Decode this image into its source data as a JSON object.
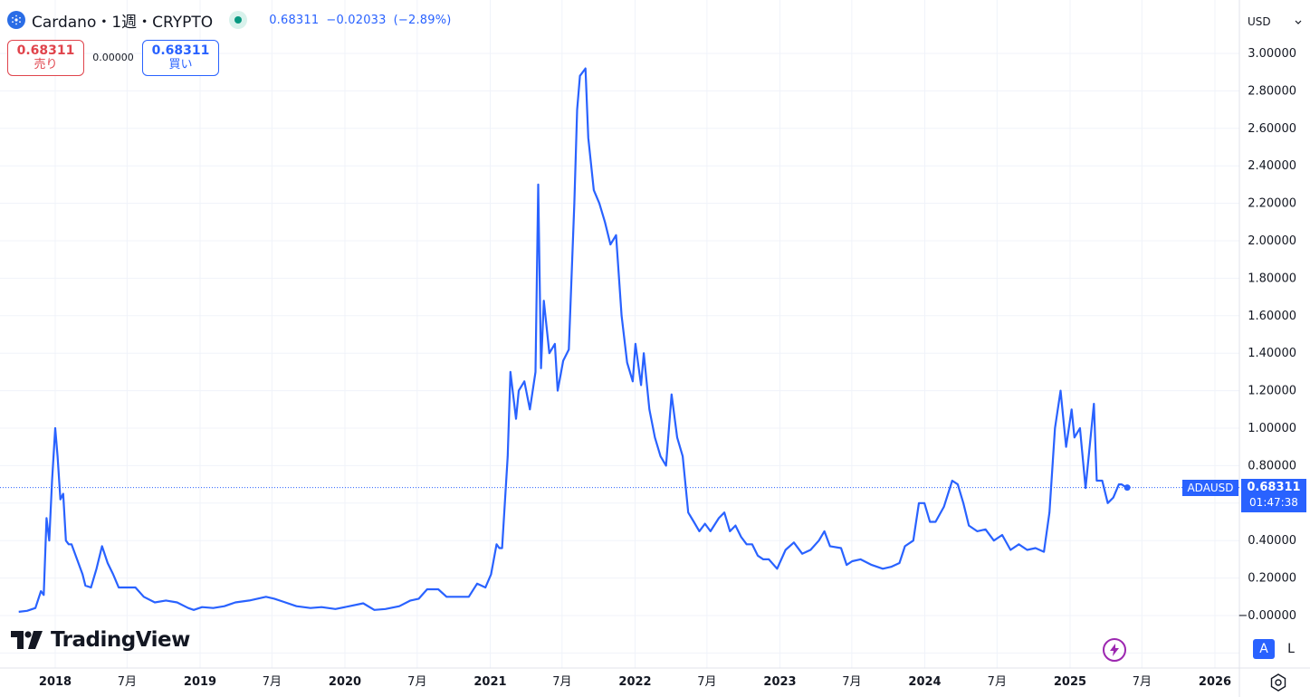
{
  "header": {
    "title": "Cardano・1週・CRYPTO",
    "price": "0.68311",
    "change": "−0.02033",
    "change_pct": "(−2.89%)",
    "icon": "cardano-icon"
  },
  "trade": {
    "sell_price": "0.68311",
    "sell_label": "売り",
    "spread": "0.00000",
    "buy_price": "0.68311",
    "buy_label": "買い"
  },
  "currency": {
    "label": "USD"
  },
  "branding": {
    "logo_text": "TradingView"
  },
  "price_tag": {
    "symbol": "ADAUSD",
    "price": "0.68311",
    "countdown": "01:47:38"
  },
  "buttons": {
    "auto": "A",
    "log": "L"
  },
  "colors": {
    "line": "#2962ff",
    "text": "#131722",
    "grid": "#f0f3fa",
    "sell": "#e0444c"
  },
  "chart_data": {
    "type": "line",
    "series": [
      {
        "values": [
          [
            "2017-10-01",
            0.02
          ],
          [
            "2017-10-22",
            0.025
          ],
          [
            "2017-11-12",
            0.04
          ],
          [
            "2017-11-26",
            0.13
          ],
          [
            "2017-12-03",
            0.11
          ],
          [
            "2017-12-10",
            0.52
          ],
          [
            "2017-12-17",
            0.4
          ],
          [
            "2017-12-24",
            0.72
          ],
          [
            "2018-01-01",
            1.0
          ],
          [
            "2018-01-07",
            0.85
          ],
          [
            "2018-01-14",
            0.62
          ],
          [
            "2018-01-21",
            0.65
          ],
          [
            "2018-01-28",
            0.4
          ],
          [
            "2018-02-04",
            0.38
          ],
          [
            "2018-02-11",
            0.38
          ],
          [
            "2018-02-25",
            0.3
          ],
          [
            "2018-03-11",
            0.22
          ],
          [
            "2018-03-18",
            0.16
          ],
          [
            "2018-04-01",
            0.15
          ],
          [
            "2018-04-15",
            0.25
          ],
          [
            "2018-04-29",
            0.37
          ],
          [
            "2018-05-13",
            0.28
          ],
          [
            "2018-05-27",
            0.22
          ],
          [
            "2018-06-10",
            0.15
          ],
          [
            "2018-07-01",
            0.15
          ],
          [
            "2018-07-22",
            0.15
          ],
          [
            "2018-08-12",
            0.1
          ],
          [
            "2018-09-09",
            0.07
          ],
          [
            "2018-10-07",
            0.08
          ],
          [
            "2018-11-04",
            0.07
          ],
          [
            "2018-12-02",
            0.04
          ],
          [
            "2018-12-16",
            0.03
          ],
          [
            "2019-01-06",
            0.045
          ],
          [
            "2019-02-03",
            0.04
          ],
          [
            "2019-03-03",
            0.05
          ],
          [
            "2019-03-31",
            0.07
          ],
          [
            "2019-05-05",
            0.08
          ],
          [
            "2019-06-16",
            0.1
          ],
          [
            "2019-07-07",
            0.09
          ],
          [
            "2019-07-28",
            0.075
          ],
          [
            "2019-09-01",
            0.05
          ],
          [
            "2019-10-06",
            0.04
          ],
          [
            "2019-11-03",
            0.045
          ],
          [
            "2019-12-08",
            0.035
          ],
          [
            "2020-01-12",
            0.05
          ],
          [
            "2020-02-16",
            0.065
          ],
          [
            "2020-03-15",
            0.03
          ],
          [
            "2020-04-12",
            0.035
          ],
          [
            "2020-05-17",
            0.05
          ],
          [
            "2020-06-14",
            0.08
          ],
          [
            "2020-07-05",
            0.09
          ],
          [
            "2020-07-26",
            0.14
          ],
          [
            "2020-08-23",
            0.14
          ],
          [
            "2020-09-13",
            0.1
          ],
          [
            "2020-10-11",
            0.1
          ],
          [
            "2020-11-08",
            0.1
          ],
          [
            "2020-11-29",
            0.17
          ],
          [
            "2020-12-20",
            0.15
          ],
          [
            "2021-01-03",
            0.22
          ],
          [
            "2021-01-17",
            0.38
          ],
          [
            "2021-01-24",
            0.36
          ],
          [
            "2021-01-31",
            0.36
          ],
          [
            "2021-02-14",
            0.85
          ],
          [
            "2021-02-21",
            1.3
          ],
          [
            "2021-03-07",
            1.05
          ],
          [
            "2021-03-14",
            1.2
          ],
          [
            "2021-03-28",
            1.25
          ],
          [
            "2021-04-11",
            1.1
          ],
          [
            "2021-04-25",
            1.3
          ],
          [
            "2021-05-02",
            2.3
          ],
          [
            "2021-05-09",
            1.32
          ],
          [
            "2021-05-16",
            1.68
          ],
          [
            "2021-05-30",
            1.4
          ],
          [
            "2021-06-13",
            1.45
          ],
          [
            "2021-06-20",
            1.2
          ],
          [
            "2021-07-04",
            1.36
          ],
          [
            "2021-07-18",
            1.42
          ],
          [
            "2021-08-01",
            2.2
          ],
          [
            "2021-08-08",
            2.7
          ],
          [
            "2021-08-15",
            2.88
          ],
          [
            "2021-08-29",
            2.92
          ],
          [
            "2021-09-05",
            2.55
          ],
          [
            "2021-09-19",
            2.27
          ],
          [
            "2021-10-03",
            2.2
          ],
          [
            "2021-10-17",
            2.1
          ],
          [
            "2021-10-31",
            1.98
          ],
          [
            "2021-11-14",
            2.03
          ],
          [
            "2021-11-28",
            1.6
          ],
          [
            "2021-12-12",
            1.35
          ],
          [
            "2021-12-26",
            1.25
          ],
          [
            "2022-01-02",
            1.45
          ],
          [
            "2022-01-16",
            1.23
          ],
          [
            "2022-01-23",
            1.4
          ],
          [
            "2022-02-06",
            1.1
          ],
          [
            "2022-02-20",
            0.95
          ],
          [
            "2022-03-06",
            0.85
          ],
          [
            "2022-03-20",
            0.8
          ],
          [
            "2022-04-03",
            1.18
          ],
          [
            "2022-04-17",
            0.95
          ],
          [
            "2022-05-01",
            0.85
          ],
          [
            "2022-05-15",
            0.55
          ],
          [
            "2022-05-29",
            0.5
          ],
          [
            "2022-06-12",
            0.45
          ],
          [
            "2022-06-26",
            0.49
          ],
          [
            "2022-07-10",
            0.45
          ],
          [
            "2022-07-31",
            0.52
          ],
          [
            "2022-08-14",
            0.55
          ],
          [
            "2022-08-28",
            0.45
          ],
          [
            "2022-09-11",
            0.48
          ],
          [
            "2022-09-25",
            0.42
          ],
          [
            "2022-10-09",
            0.38
          ],
          [
            "2022-10-23",
            0.38
          ],
          [
            "2022-11-06",
            0.32
          ],
          [
            "2022-11-20",
            0.3
          ],
          [
            "2022-12-04",
            0.3
          ],
          [
            "2022-12-25",
            0.25
          ],
          [
            "2023-01-15",
            0.35
          ],
          [
            "2023-02-05",
            0.39
          ],
          [
            "2023-02-26",
            0.33
          ],
          [
            "2023-03-19",
            0.35
          ],
          [
            "2023-04-09",
            0.4
          ],
          [
            "2023-04-23",
            0.45
          ],
          [
            "2023-05-07",
            0.37
          ],
          [
            "2023-06-04",
            0.36
          ],
          [
            "2023-06-18",
            0.27
          ],
          [
            "2023-07-02",
            0.29
          ],
          [
            "2023-07-23",
            0.3
          ],
          [
            "2023-08-20",
            0.27
          ],
          [
            "2023-09-17",
            0.25
          ],
          [
            "2023-10-08",
            0.26
          ],
          [
            "2023-10-29",
            0.28
          ],
          [
            "2023-11-12",
            0.37
          ],
          [
            "2023-12-03",
            0.4
          ],
          [
            "2023-12-17",
            0.6
          ],
          [
            "2023-12-31",
            0.6
          ],
          [
            "2024-01-14",
            0.5
          ],
          [
            "2024-01-28",
            0.5
          ],
          [
            "2024-02-18",
            0.58
          ],
          [
            "2024-03-10",
            0.72
          ],
          [
            "2024-03-24",
            0.7
          ],
          [
            "2024-04-07",
            0.6
          ],
          [
            "2024-04-21",
            0.48
          ],
          [
            "2024-05-12",
            0.45
          ],
          [
            "2024-06-02",
            0.46
          ],
          [
            "2024-06-23",
            0.4
          ],
          [
            "2024-07-14",
            0.43
          ],
          [
            "2024-08-04",
            0.35
          ],
          [
            "2024-08-25",
            0.38
          ],
          [
            "2024-09-15",
            0.35
          ],
          [
            "2024-10-06",
            0.36
          ],
          [
            "2024-10-27",
            0.34
          ],
          [
            "2024-11-10",
            0.55
          ],
          [
            "2024-11-24",
            1.0
          ],
          [
            "2024-12-08",
            1.2
          ],
          [
            "2024-12-22",
            0.9
          ],
          [
            "2025-01-05",
            1.1
          ],
          [
            "2025-01-12",
            0.95
          ],
          [
            "2025-01-26",
            1.0
          ],
          [
            "2025-02-09",
            0.68
          ],
          [
            "2025-03-02",
            1.13
          ],
          [
            "2025-03-09",
            0.72
          ],
          [
            "2025-03-23",
            0.72
          ],
          [
            "2025-04-06",
            0.6
          ],
          [
            "2025-04-20",
            0.63
          ],
          [
            "2025-05-04",
            0.7
          ],
          [
            "2025-05-11",
            0.7
          ],
          [
            "2025-05-18",
            0.69
          ],
          [
            "2025-05-25",
            0.683
          ]
        ]
      }
    ],
    "x_ticks": [
      {
        "date": "2018-01-01",
        "label": "2018",
        "bold": true
      },
      {
        "date": "2018-07-01",
        "label": "7月",
        "bold": false
      },
      {
        "date": "2019-01-01",
        "label": "2019",
        "bold": true
      },
      {
        "date": "2019-07-01",
        "label": "7月",
        "bold": false
      },
      {
        "date": "2020-01-01",
        "label": "2020",
        "bold": true
      },
      {
        "date": "2020-07-01",
        "label": "7月",
        "bold": false
      },
      {
        "date": "2021-01-01",
        "label": "2021",
        "bold": true
      },
      {
        "date": "2021-07-01",
        "label": "7月",
        "bold": false
      },
      {
        "date": "2022-01-01",
        "label": "2022",
        "bold": true
      },
      {
        "date": "2022-07-01",
        "label": "7月",
        "bold": false
      },
      {
        "date": "2023-01-01",
        "label": "2023",
        "bold": true
      },
      {
        "date": "2023-07-01",
        "label": "7月",
        "bold": false
      },
      {
        "date": "2024-01-01",
        "label": "2024",
        "bold": true
      },
      {
        "date": "2024-07-01",
        "label": "7月",
        "bold": false
      },
      {
        "date": "2025-01-01",
        "label": "2025",
        "bold": true
      },
      {
        "date": "2025-07-01",
        "label": "7月",
        "bold": false
      },
      {
        "date": "2026-01-01",
        "label": "2026",
        "bold": true
      }
    ],
    "y_ticks": [
      {
        "value": 3.0,
        "label": "3.00000"
      },
      {
        "value": 2.8,
        "label": "2.80000"
      },
      {
        "value": 2.6,
        "label": "2.60000"
      },
      {
        "value": 2.4,
        "label": "2.40000"
      },
      {
        "value": 2.2,
        "label": "2.20000"
      },
      {
        "value": 2.0,
        "label": "2.00000"
      },
      {
        "value": 1.8,
        "label": "1.80000"
      },
      {
        "value": 1.6,
        "label": "1.60000"
      },
      {
        "value": 1.4,
        "label": "1.40000"
      },
      {
        "value": 1.2,
        "label": "1.20000"
      },
      {
        "value": 1.0,
        "label": "1.00000"
      },
      {
        "value": 0.8,
        "label": "0.80000"
      },
      {
        "value": 0.4,
        "label": "0.40000"
      },
      {
        "value": 0.2,
        "label": "0.20000"
      },
      {
        "value": 0.0,
        "label": "−0.00000"
      }
    ],
    "ylim": [
      -0.2,
      3.1
    ],
    "xlim": [
      "2017-09-15",
      "2026-07-01"
    ],
    "last_value": 0.68311,
    "grid": true
  }
}
